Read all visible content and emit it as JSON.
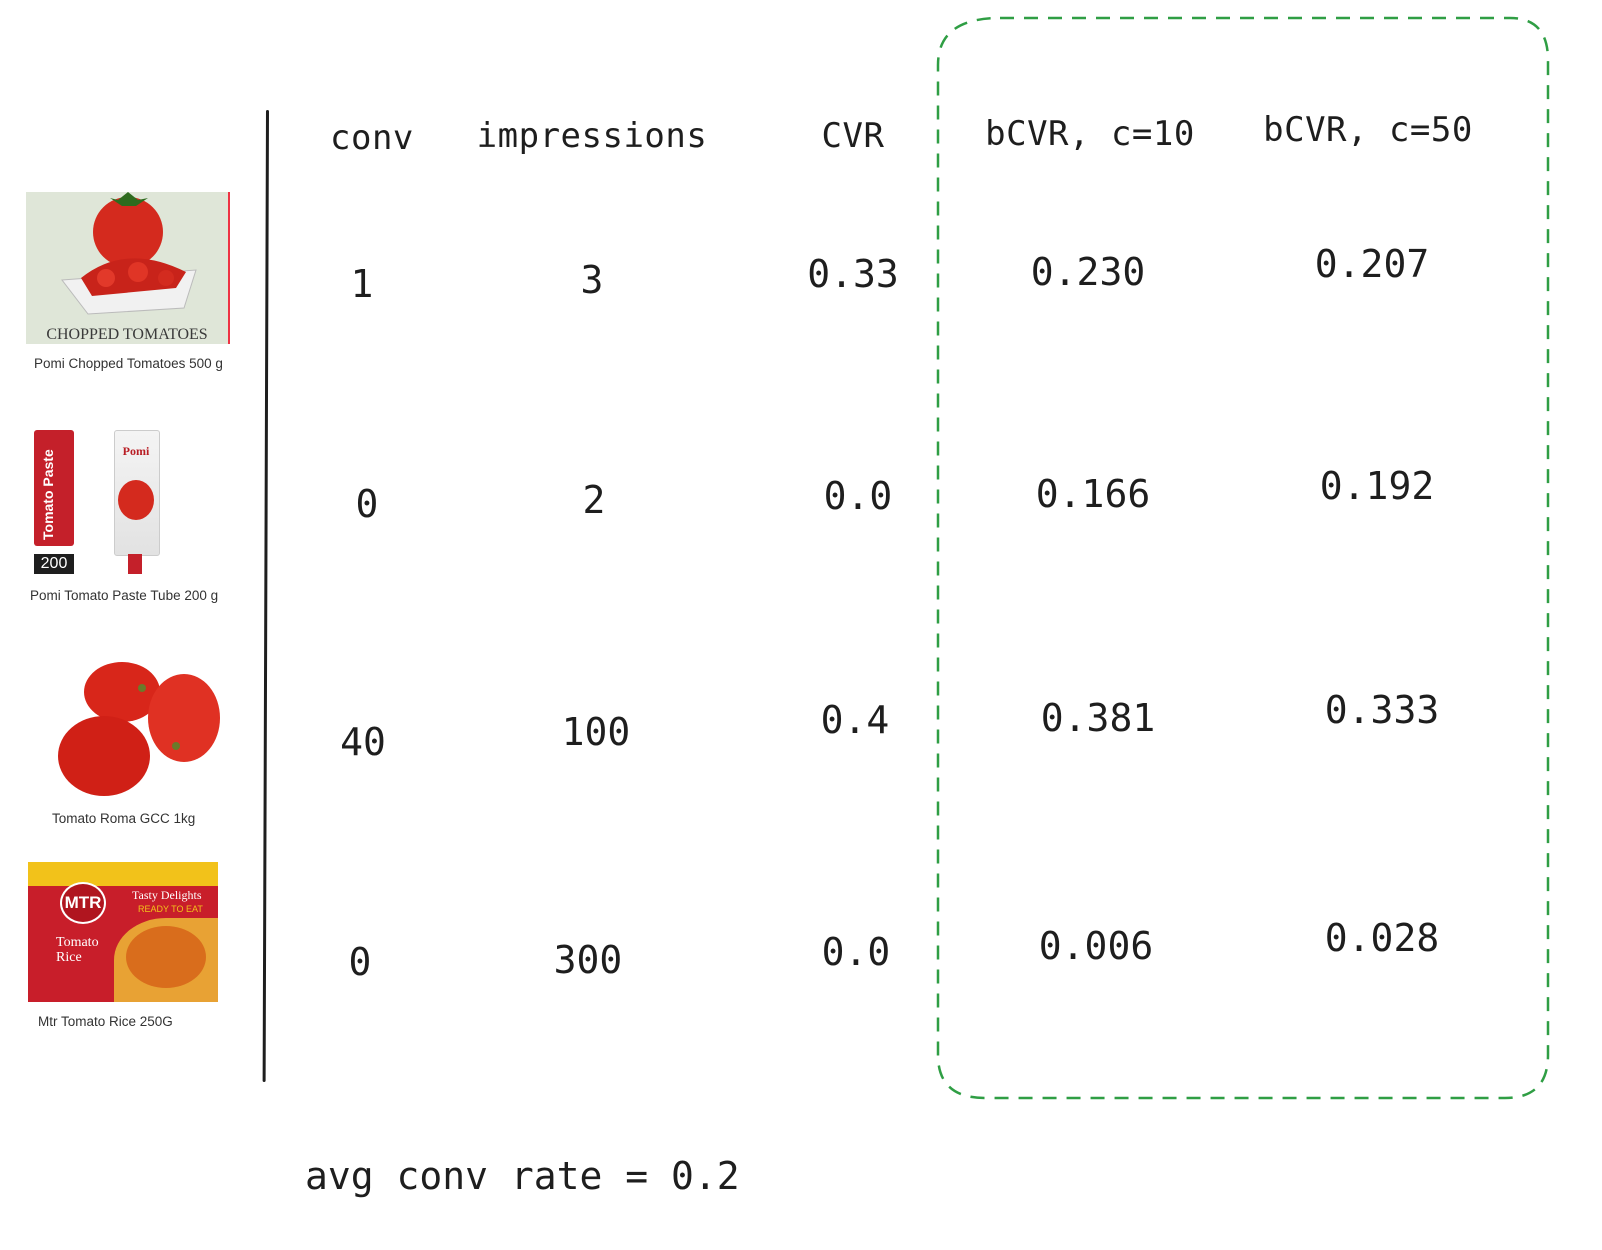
{
  "headers": {
    "conv": "conv",
    "impressions": "impressions",
    "cvr": "CVR",
    "bcvr10": "bCVR, c=10",
    "bcvr50": "bCVR, c=50"
  },
  "products": [
    {
      "name": "Pomi Chopped Tomatoes 500 g",
      "image_label": "CHOPPED TOMATOES",
      "conv": "1",
      "impressions": "3",
      "cvr": "0.33",
      "bcvr10": "0.230",
      "bcvr50": "0.207"
    },
    {
      "name": "Pomi Tomato Paste Tube 200 g",
      "image_label": "Tomato Paste",
      "image_badge": "200",
      "image_brand": "Pomi",
      "conv": "0",
      "impressions": "2",
      "cvr": "0.0",
      "bcvr10": "0.166",
      "bcvr50": "0.192"
    },
    {
      "name": "Tomato Roma GCC 1kg",
      "conv": "40",
      "impressions": "100",
      "cvr": "0.4",
      "bcvr10": "0.381",
      "bcvr50": "0.333"
    },
    {
      "name": "Mtr Tomato Rice 250G",
      "image_brand": "MTR",
      "image_label": "Tasty Delights",
      "image_sub": "READY TO EAT",
      "image_title_1": "Tomato",
      "image_title_2": "Rice",
      "conv": "0",
      "impressions": "300",
      "cvr": "0.0",
      "bcvr10": "0.006",
      "bcvr50": "0.028"
    }
  ],
  "footer": "avg conv rate = 0.2",
  "colors": {
    "ink": "#1e1e1e",
    "highlight_border": "#2f9e44",
    "tomato": "#d42a1e"
  }
}
